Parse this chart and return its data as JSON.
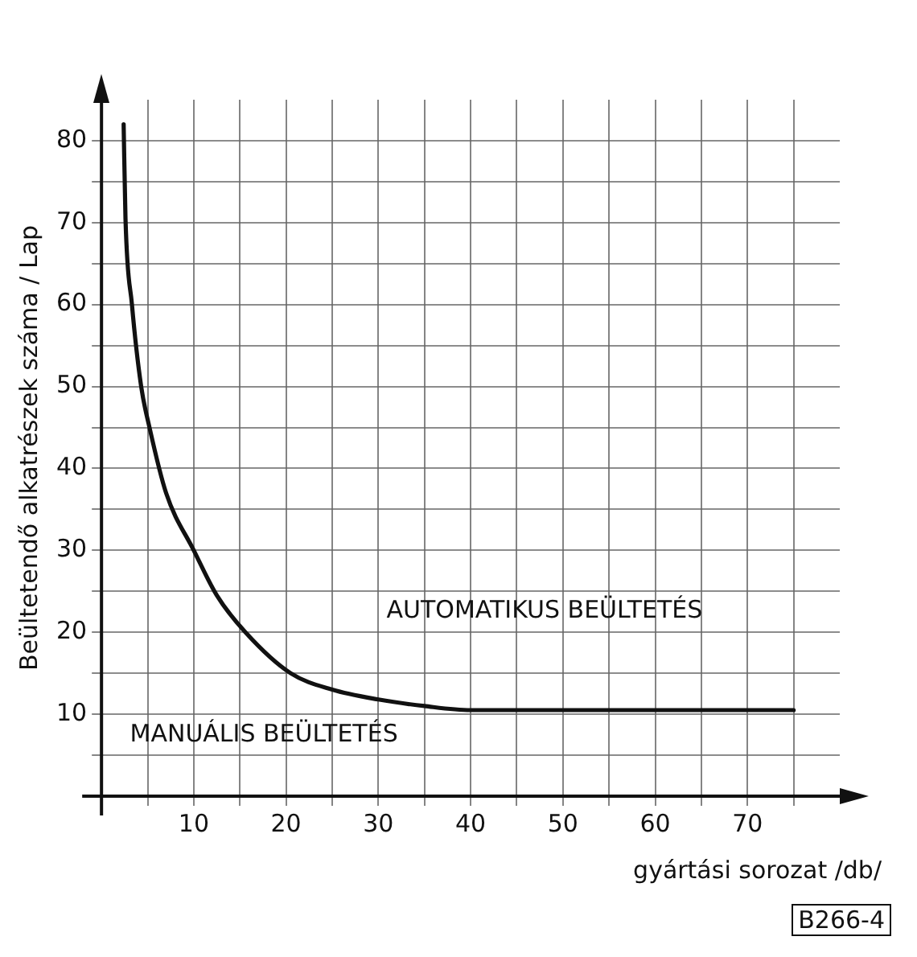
{
  "chart_data": {
    "type": "line",
    "xlabel": "gyártási sorozat /db/",
    "ylabel": "Beültetendő alkatrészek száma / Lap",
    "series": [
      {
        "color": "#111111",
        "x": [
          2.4,
          2.6,
          3.3,
          4.3,
          5.2,
          7,
          10,
          12.5,
          15.6,
          20.5,
          25,
          30,
          35,
          40,
          50,
          60,
          75
        ],
        "values": [
          82,
          70.5,
          60,
          50,
          45,
          37,
          30,
          24.5,
          20,
          15,
          13,
          11.8,
          11,
          10.5,
          10.5,
          10.5,
          10.5
        ]
      }
    ],
    "xlim": [
      0,
      80
    ],
    "ylim": [
      0,
      85
    ],
    "xticks": [
      {
        "value": 5,
        "label": null
      },
      10,
      {
        "value": 15,
        "label": null
      },
      20,
      {
        "value": 25,
        "label": null
      },
      30,
      {
        "value": 35,
        "label": null
      },
      40,
      {
        "value": 45,
        "label": null
      },
      50,
      {
        "value": 55,
        "label": null
      },
      60,
      {
        "value": 65,
        "label": null
      },
      70,
      {
        "value": 75,
        "label": null
      }
    ],
    "yticks": [
      {
        "value": 5,
        "label": null
      },
      10,
      {
        "value": 15,
        "label": null
      },
      20,
      {
        "value": 25,
        "label": null
      },
      30,
      {
        "value": 35,
        "label": null
      },
      40,
      {
        "value": 45,
        "label": null
      },
      50,
      {
        "value": 55,
        "label": null
      },
      60,
      {
        "value": 65,
        "label": null
      },
      70,
      {
        "value": 75,
        "label": null
      },
      80
    ],
    "grid": true,
    "marker": "none",
    "line_style": "solid",
    "annotations": [
      "AUTOMATIKUS BEÜLTETÉS",
      "MANUÁLIS BEÜLTETÉS",
      "B266-4"
    ]
  }
}
